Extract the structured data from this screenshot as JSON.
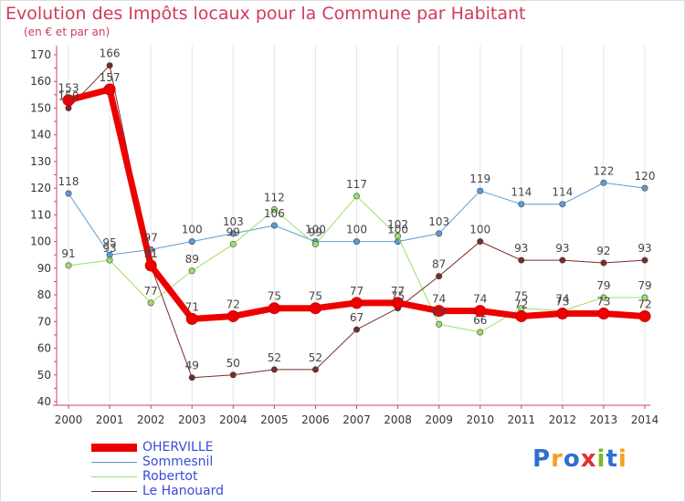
{
  "header": {
    "title": "Evolution des Impôts locaux pour la Commune par Habitant",
    "subtitle": "(en € et par an)"
  },
  "logo": {
    "text": "Proxiti",
    "colors": [
      "#2f6fd0",
      "#f4a020",
      "#2f6fd0",
      "#e03030",
      "#7ab829",
      "#2f6fd0",
      "#f4a020"
    ]
  },
  "chart_data": {
    "type": "line",
    "title": "Evolution des Impôts locaux pour la Commune par Habitant",
    "subtitle": "(en € et par an)",
    "x": [
      "2000",
      "2001",
      "2002",
      "2003",
      "2004",
      "2005",
      "2006",
      "2007",
      "2008",
      "2009",
      "2010",
      "2011",
      "2012",
      "2013",
      "2014"
    ],
    "ylim": [
      40,
      170
    ],
    "yticks": [
      40,
      50,
      60,
      70,
      80,
      90,
      100,
      110,
      120,
      130,
      140,
      150,
      160,
      170
    ],
    "grid": "vertical",
    "legend_position": "bottom-left",
    "series": [
      {
        "name": "OHERVILLE",
        "color": "#ee0000",
        "width": 7,
        "values": [
          153,
          157,
          91,
          71,
          72,
          75,
          75,
          77,
          77,
          74,
          74,
          72,
          73,
          73,
          72
        ]
      },
      {
        "name": "Sommesnil",
        "color": "#5b9bd5",
        "width": 1,
        "values": [
          118,
          95,
          97,
          100,
          103,
          106,
          100,
          100,
          100,
          103,
          119,
          114,
          114,
          122,
          120
        ]
      },
      {
        "name": "Robertot",
        "color": "#99e066",
        "width": 1,
        "values": [
          91,
          93,
          77,
          89,
          99,
          112,
          99,
          117,
          102,
          69,
          66,
          75,
          74,
          79,
          79
        ]
      },
      {
        "name": "Le Hanouard",
        "color": "#7a2a2a",
        "width": 1,
        "values": [
          150,
          166,
          91,
          49,
          50,
          52,
          52,
          67,
          75,
          87,
          100,
          93,
          93,
          92,
          93
        ]
      }
    ]
  }
}
